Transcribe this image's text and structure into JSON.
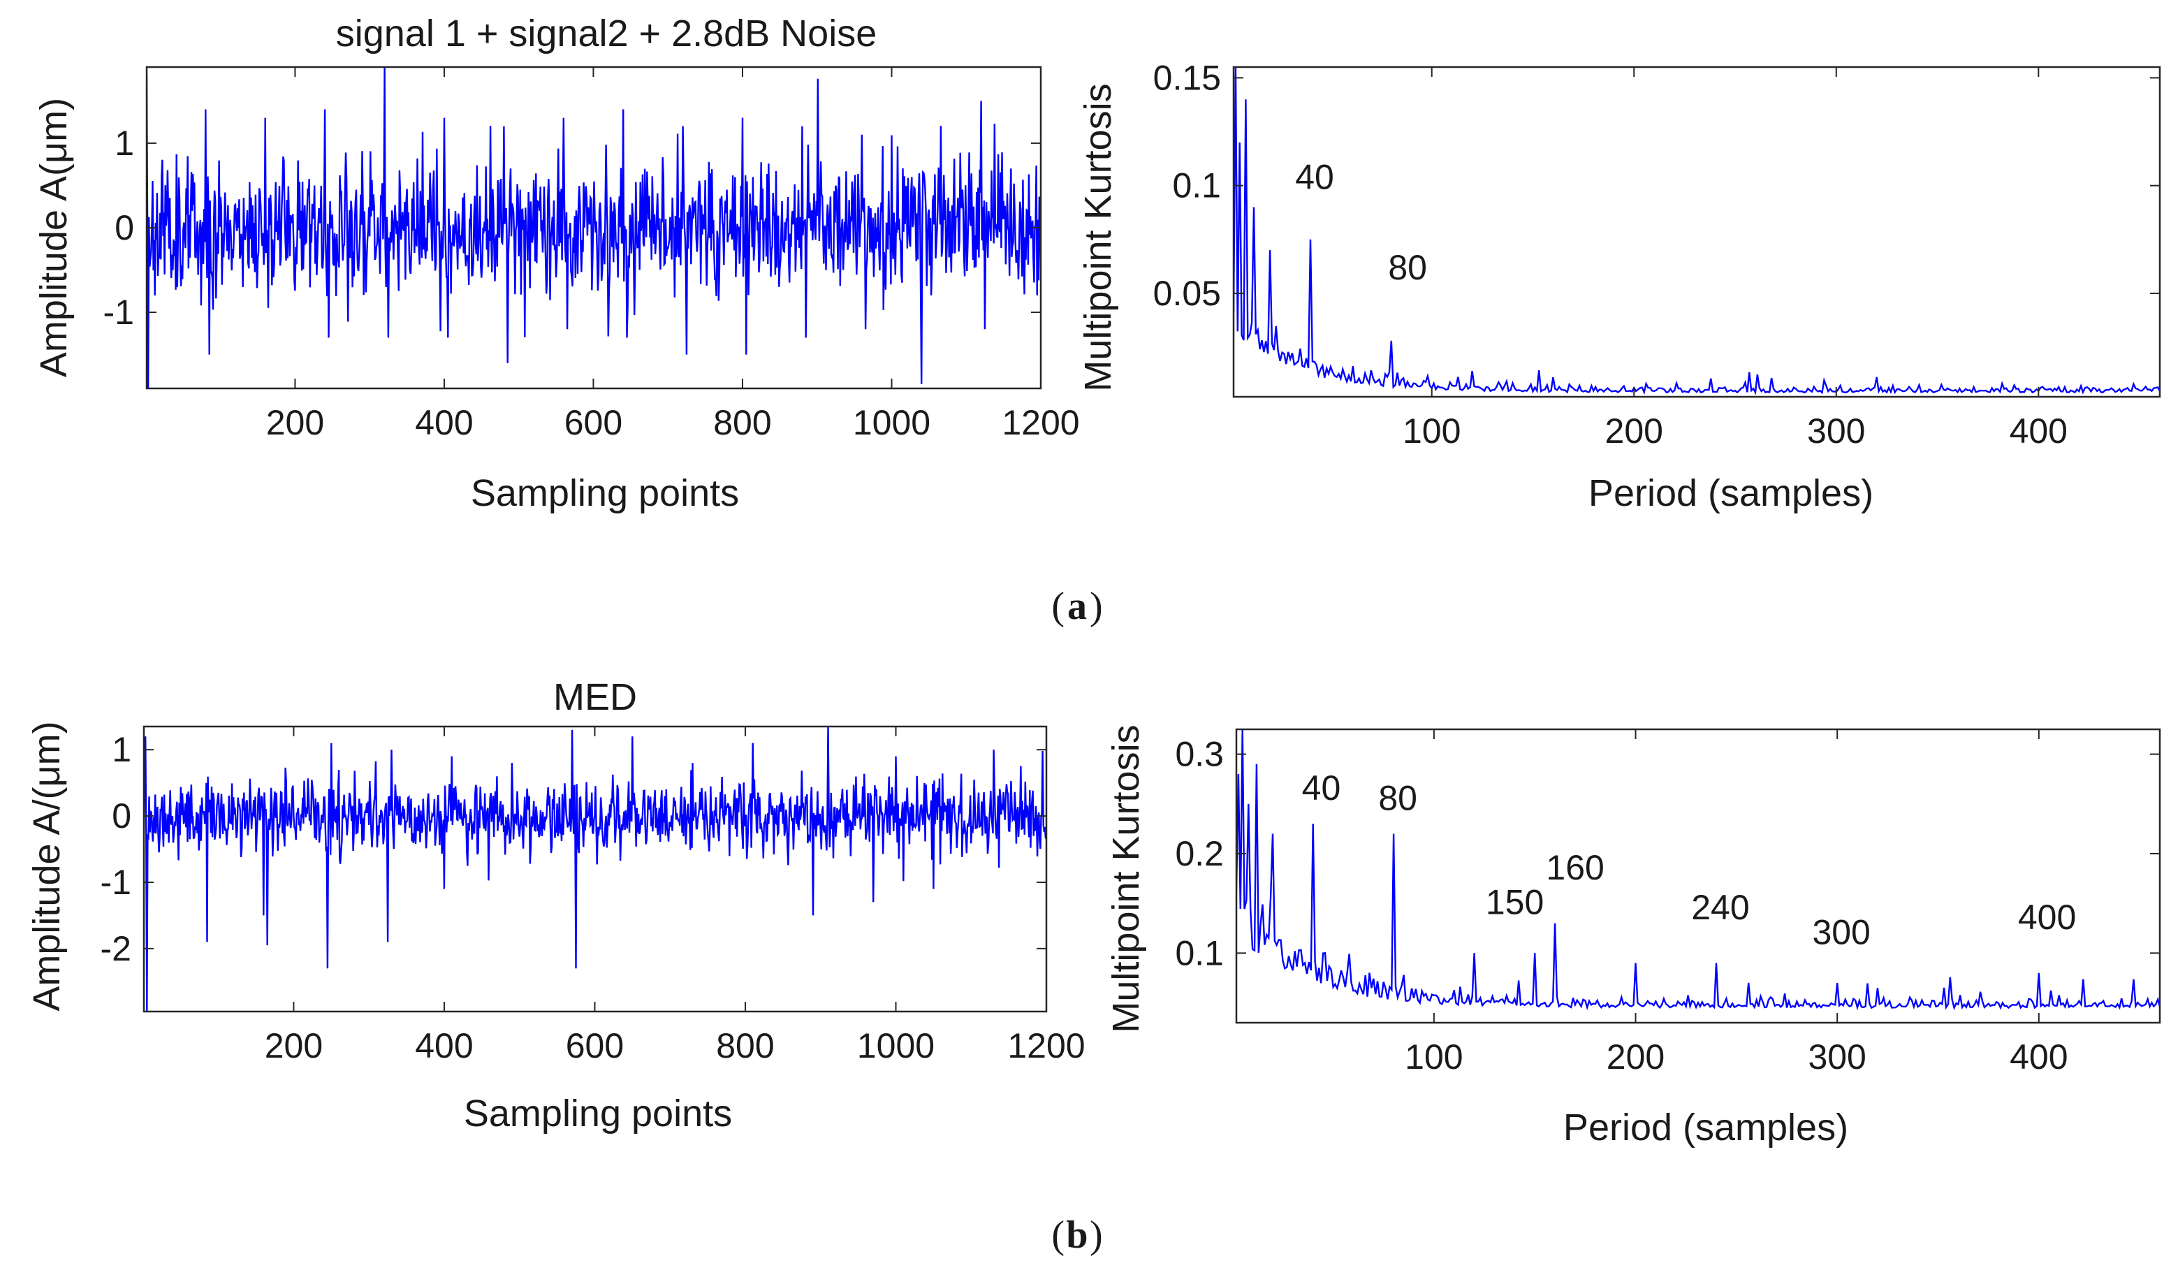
{
  "colors": {
    "series": "#0000ff",
    "axes": "#262626",
    "background": "#ffffff"
  },
  "figure": {
    "captions": [
      "a",
      "b"
    ]
  },
  "chart_data": [
    {
      "id": "a-left",
      "type": "line",
      "title": "signal 1 + signal2 + 2.8dB Noise",
      "xlabel": "Sampling points",
      "ylabel": "Amplitude A(μm)",
      "xlim": [
        1,
        1200
      ],
      "ylim": [
        -1.9,
        1.9
      ],
      "xticks": [
        200,
        400,
        600,
        800,
        1000,
        1200
      ],
      "yticks": [
        1,
        0,
        -1
      ],
      "series": [
        {
          "description": "noisy time signal",
          "n_points": 1200,
          "amplitude_range": [
            -1.9,
            1.9
          ],
          "spikes": [
            [
              1,
              1.8
            ],
            [
              3,
              -1.9
            ],
            [
              80,
              1.4
            ],
            [
              160,
              1.3
            ],
            [
              240,
              1.4
            ],
            [
              320,
              1.9
            ],
            [
              400,
              1.3
            ],
            [
              480,
              1.2
            ],
            [
              560,
              1.3
            ],
            [
              640,
              1.4
            ],
            [
              720,
              1.2
            ],
            [
              800,
              1.3
            ],
            [
              880,
              1.2
            ],
            [
              960,
              1.1
            ],
            [
              1040,
              -1.85
            ],
            [
              1120,
              1.5
            ],
            [
              1195,
              -0.8
            ],
            [
              85,
              -1.5
            ],
            [
              245,
              -1.3
            ],
            [
              325,
              -1.3
            ],
            [
              405,
              -1.3
            ],
            [
              485,
              -1.6
            ],
            [
              565,
              -1.2
            ],
            [
              645,
              -1.3
            ],
            [
              725,
              -1.5
            ],
            [
              805,
              -1.5
            ],
            [
              885,
              -1.3
            ],
            [
              965,
              -1.2
            ],
            [
              1125,
              -1.2
            ]
          ]
        }
      ]
    },
    {
      "id": "a-right",
      "type": "line",
      "xlabel": "Period (samples)",
      "ylabel": "Multipoint Kurtosis",
      "xlim": [
        2,
        460
      ],
      "ylim": [
        0.002,
        0.155
      ],
      "xticks": [
        100,
        200,
        300,
        400
      ],
      "yticks": [
        0.15,
        0.1,
        0.05
      ],
      "annotations": [
        {
          "text": "40",
          "x": 40,
          "y": 0.075
        },
        {
          "text": "80",
          "x": 80,
          "y": 0.028
        }
      ],
      "series": [
        {
          "description": "multipoint kurtosis spectrum",
          "peaks": [
            [
              3,
              0.155
            ],
            [
              5,
              0.12
            ],
            [
              8,
              0.14
            ],
            [
              12,
              0.09
            ],
            [
              20,
              0.07
            ],
            [
              40,
              0.075
            ],
            [
              80,
              0.028
            ],
            [
              120,
              0.014
            ],
            [
              160,
              0.011
            ]
          ],
          "baseline_start": 0.03,
          "baseline_end": 0.004
        }
      ]
    },
    {
      "id": "b-left",
      "type": "line",
      "title": "MED",
      "xlabel": "Sampling points",
      "ylabel": "Amplitude A/(μm)",
      "xlim": [
        1,
        1200
      ],
      "ylim": [
        -2.95,
        1.35
      ],
      "xticks": [
        200,
        400,
        600,
        800,
        1000,
        1200
      ],
      "yticks": [
        1,
        0,
        -1,
        -2
      ],
      "series": [
        {
          "description": "MED filtered signal",
          "spikes": [
            [
              3,
              1.2
            ],
            [
              5,
              -2.95
            ],
            [
              85,
              -1.9
            ],
            [
              160,
              -1.5
            ],
            [
              165,
              -1.95
            ],
            [
              245,
              -2.3
            ],
            [
              325,
              -1.9
            ],
            [
              400,
              -1.1
            ],
            [
              490,
              -2.2
            ],
            [
              570,
              1.3
            ],
            [
              575,
              -2.3
            ],
            [
              650,
              -1.9
            ],
            [
              730,
              -1.7
            ],
            [
              810,
              -1.85
            ],
            [
              890,
              -1.5
            ],
            [
              910,
              1.35
            ],
            [
              970,
              -1.3
            ],
            [
              1050,
              -1.1
            ],
            [
              1130,
              -2.0
            ],
            [
              1210,
              -0.9
            ],
            [
              250,
              1.1
            ],
            [
              330,
              1.0
            ],
            [
              410,
              0.9
            ],
            [
              490,
              0.8
            ],
            [
              650,
              1.2
            ],
            [
              730,
              0.8
            ],
            [
              810,
              1.1
            ],
            [
              1000,
              0.9
            ],
            [
              1130,
              1.0
            ]
          ]
        }
      ]
    },
    {
      "id": "b-right",
      "type": "line",
      "xlabel": "Period (samples)",
      "ylabel": "Multipoint Kurtosis",
      "xlim": [
        2,
        460
      ],
      "ylim": [
        0.03,
        0.325
      ],
      "xticks": [
        100,
        200,
        300,
        400
      ],
      "yticks": [
        0.3,
        0.2,
        0.1
      ],
      "annotations": [
        {
          "text": "40",
          "x": 40,
          "y": 0.23
        },
        {
          "text": "80",
          "x": 80,
          "y": 0.22
        },
        {
          "text": "150",
          "x": 150,
          "y": 0.11
        },
        {
          "text": "160",
          "x": 160,
          "y": 0.13
        },
        {
          "text": "240",
          "x": 240,
          "y": 0.09
        },
        {
          "text": "300",
          "x": 300,
          "y": 0.07
        },
        {
          "text": "400",
          "x": 400,
          "y": 0.08
        }
      ],
      "series": [
        {
          "description": "MED multipoint kurtosis spectrum",
          "peaks": [
            [
              3,
              0.28
            ],
            [
              5,
              0.325
            ],
            [
              8,
              0.25
            ],
            [
              12,
              0.29
            ],
            [
              20,
              0.22
            ],
            [
              40,
              0.23
            ],
            [
              80,
              0.22
            ],
            [
              120,
              0.1
            ],
            [
              150,
              0.1
            ],
            [
              160,
              0.13
            ],
            [
              200,
              0.09
            ],
            [
              240,
              0.09
            ],
            [
              300,
              0.07
            ],
            [
              320,
              0.065
            ],
            [
              400,
              0.08
            ]
          ],
          "baseline_start": 0.12,
          "baseline_end": 0.045
        }
      ]
    }
  ]
}
